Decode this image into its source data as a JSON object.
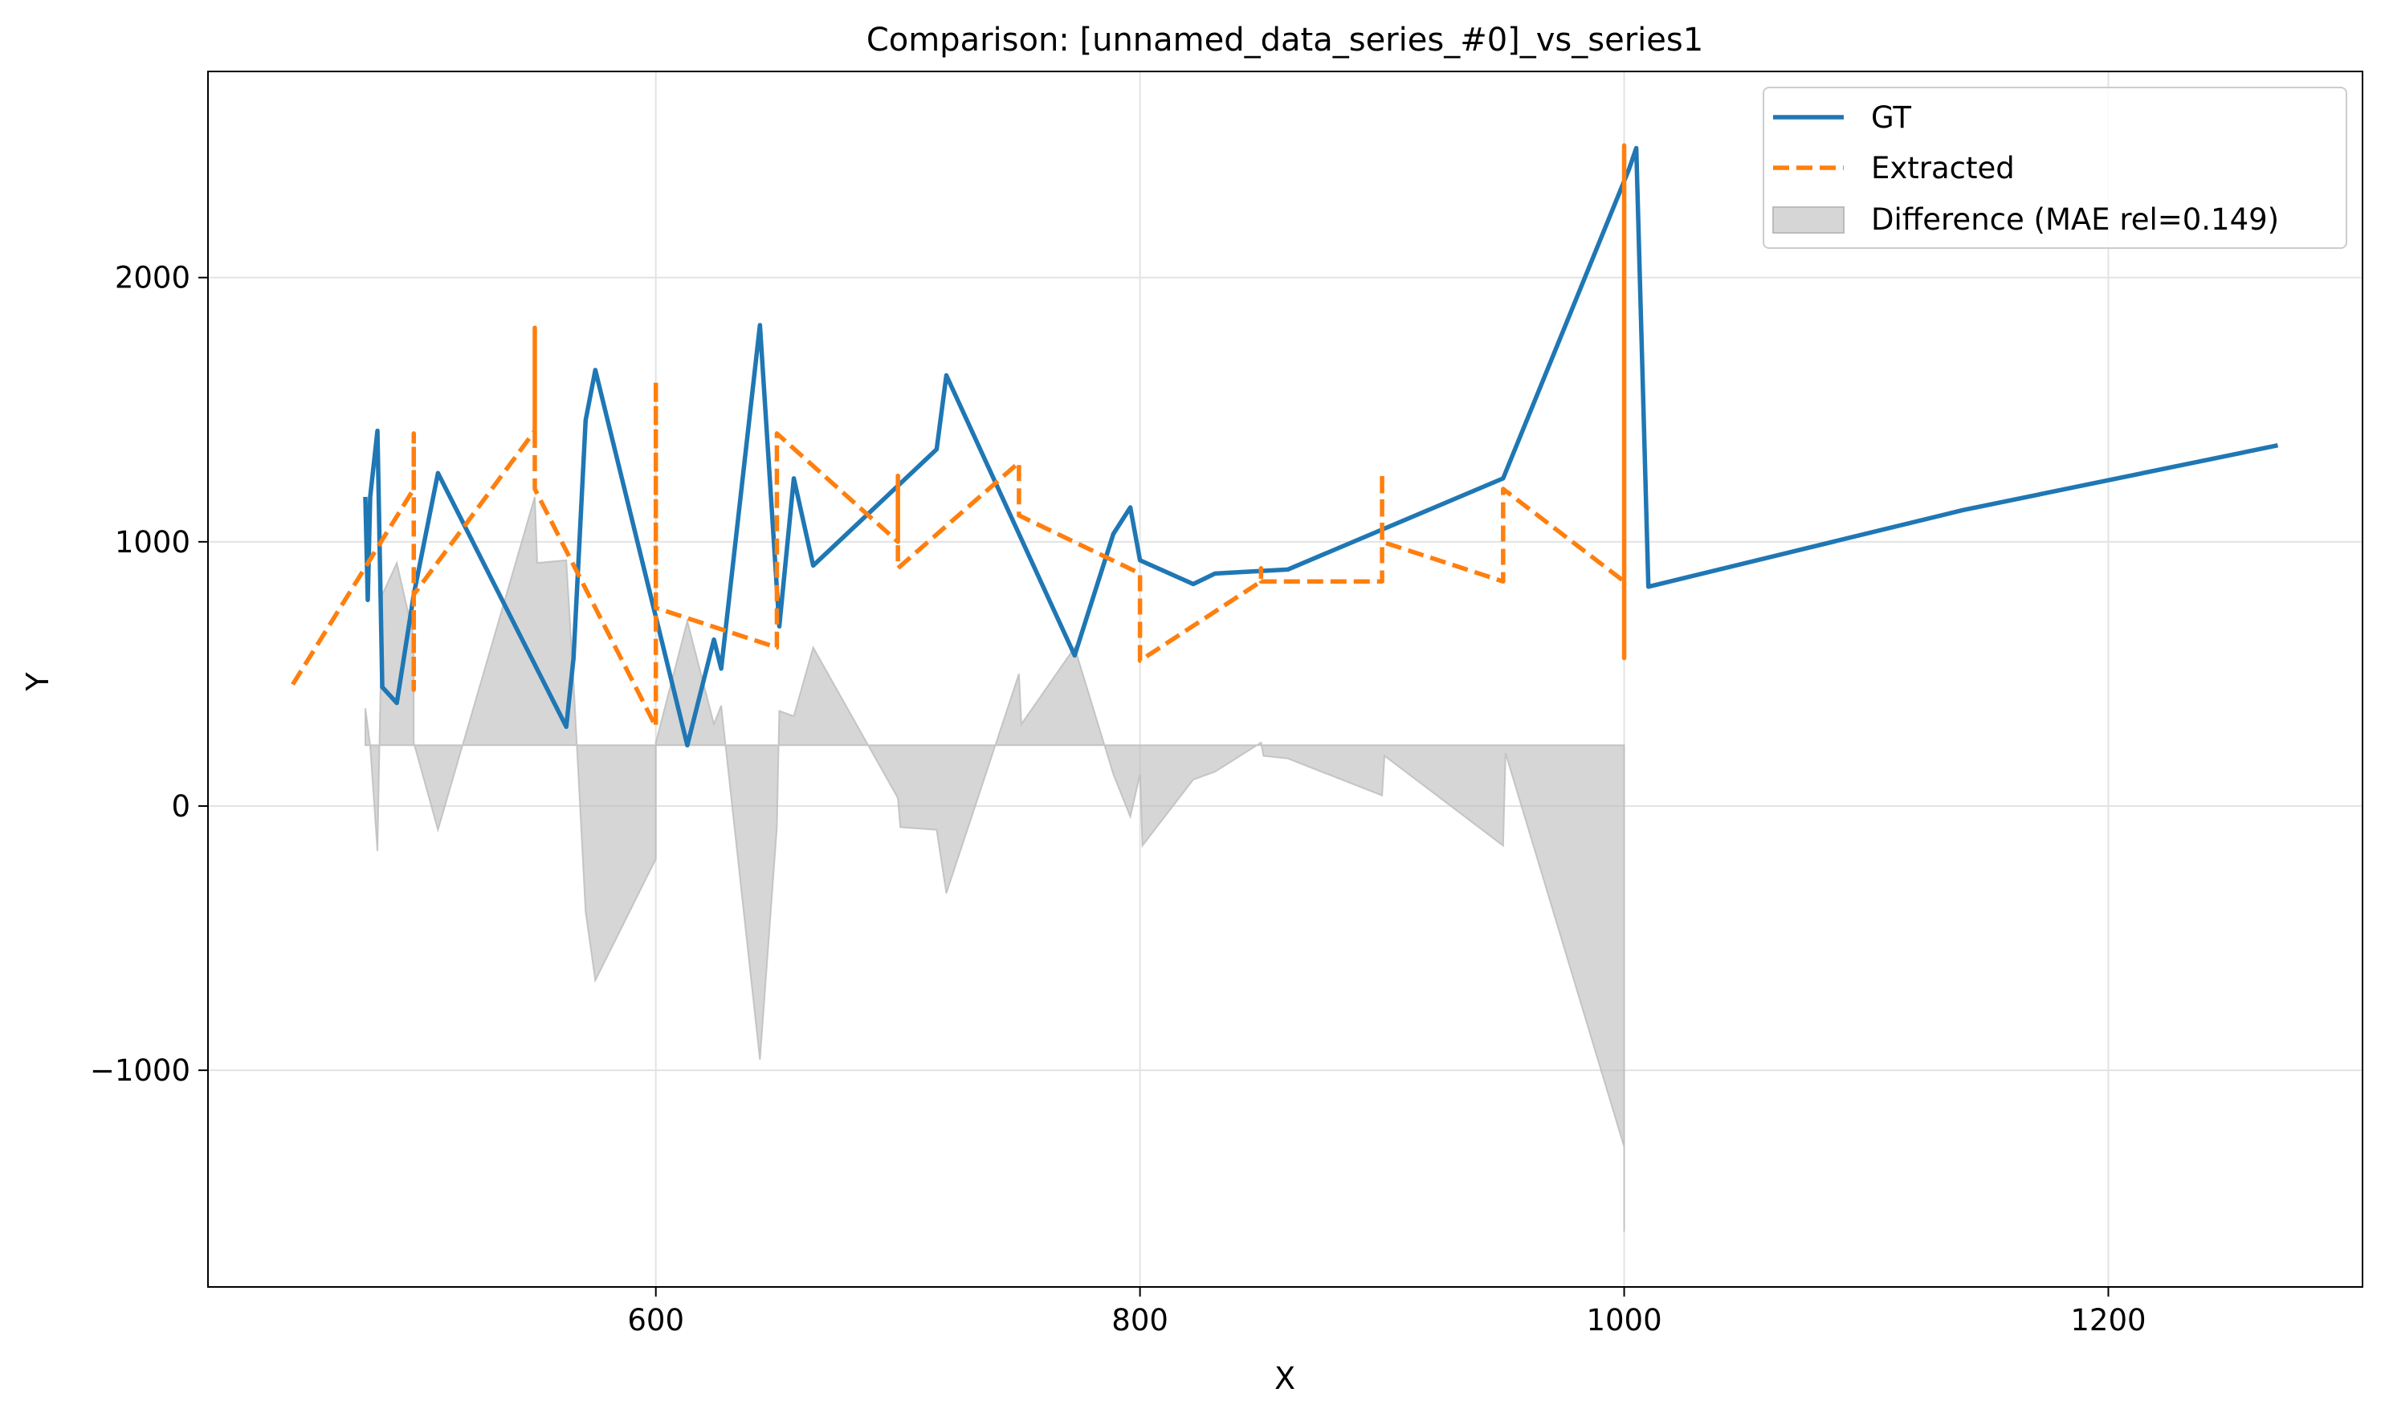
{
  "chart_data": {
    "type": "line",
    "title": "Comparison: [unnamed_data_series_#0]_vs_series1",
    "xlabel": "X",
    "ylabel": "Y",
    "xlim": [
      415,
      1305
    ],
    "ylim": [
      -1820,
      2780
    ],
    "x_ticks": [
      600,
      800,
      1000,
      1200
    ],
    "y_ticks": [
      -1000,
      0,
      1000,
      2000
    ],
    "x_tick_labels": [
      "600",
      "800",
      "1000",
      "1200"
    ],
    "y_tick_labels": [
      "−1000",
      "0",
      "1000",
      "2000"
    ],
    "grid": true,
    "legend_position": "top-right",
    "series": [
      {
        "name": "GT",
        "style": "solid",
        "color": "#1f77b4",
        "points": [
          [
            480,
            1170
          ],
          [
            481,
            780
          ],
          [
            482,
            1170
          ],
          [
            485,
            1420
          ],
          [
            487,
            450
          ],
          [
            493,
            390
          ],
          [
            500,
            800
          ],
          [
            510,
            1260
          ],
          [
            563,
            300
          ],
          [
            566,
            560
          ],
          [
            571,
            1460
          ],
          [
            575,
            1650
          ],
          [
            613,
            230
          ],
          [
            624,
            630
          ],
          [
            627,
            520
          ],
          [
            643,
            1820
          ],
          [
            651,
            680
          ],
          [
            657,
            1240
          ],
          [
            665,
            910
          ],
          [
            716,
            1350
          ],
          [
            720,
            1630
          ],
          [
            773,
            570
          ],
          [
            789,
            1030
          ],
          [
            796,
            1130
          ],
          [
            800,
            930
          ],
          [
            822,
            840
          ],
          [
            831,
            880
          ],
          [
            861,
            895
          ],
          [
            950,
            1240
          ],
          [
            1002,
            2410
          ],
          [
            1005,
            2490
          ],
          [
            1010,
            830
          ],
          [
            1140,
            1120
          ],
          [
            1270,
            1365
          ]
        ]
      },
      {
        "name": "Extracted",
        "style": "dashed",
        "color": "#ff7f0e",
        "points": [
          [
            450,
            460
          ],
          [
            500,
            1200
          ],
          [
            500,
            1410
          ],
          [
            500,
            440
          ],
          [
            500,
            800
          ],
          [
            550,
            1420
          ],
          [
            550,
            1810
          ],
          [
            550,
            1200
          ],
          [
            600,
            300
          ],
          [
            600,
            1610
          ],
          [
            600,
            750
          ],
          [
            650,
            600
          ],
          [
            650,
            1410
          ],
          [
            700,
            1000
          ],
          [
            700,
            1250
          ],
          [
            700,
            900
          ],
          [
            750,
            1300
          ],
          [
            750,
            1100
          ],
          [
            800,
            880
          ],
          [
            800,
            550
          ],
          [
            850,
            850
          ],
          [
            850,
            900
          ],
          [
            850,
            850
          ],
          [
            900,
            850
          ],
          [
            900,
            1260
          ],
          [
            900,
            1000
          ],
          [
            950,
            850
          ],
          [
            950,
            1200
          ],
          [
            1000,
            850
          ],
          [
            1000,
            2500
          ],
          [
            1000,
            560
          ],
          [
            1000,
            850
          ]
        ]
      },
      {
        "name": "Difference (MAE rel=0.149)",
        "style": "fill",
        "color": "#bbbbbb",
        "baseline": 230,
        "x_extent": [
          480,
          1000
        ],
        "points": [
          [
            480,
            370
          ],
          [
            482,
            230
          ],
          [
            485,
            -170
          ],
          [
            487,
            800
          ],
          [
            493,
            920
          ],
          [
            500,
            640
          ],
          [
            500,
            240
          ],
          [
            510,
            -90
          ],
          [
            550,
            1170
          ],
          [
            551,
            920
          ],
          [
            563,
            930
          ],
          [
            566,
            470
          ],
          [
            571,
            -400
          ],
          [
            575,
            -660
          ],
          [
            600,
            -200
          ],
          [
            600,
            240
          ],
          [
            613,
            700
          ],
          [
            624,
            310
          ],
          [
            627,
            380
          ],
          [
            643,
            -960
          ],
          [
            650,
            -80
          ],
          [
            651,
            360
          ],
          [
            657,
            340
          ],
          [
            665,
            600
          ],
          [
            700,
            30
          ],
          [
            701,
            -80
          ],
          [
            716,
            -90
          ],
          [
            720,
            -330
          ],
          [
            750,
            500
          ],
          [
            751,
            310
          ],
          [
            773,
            600
          ],
          [
            789,
            120
          ],
          [
            796,
            -40
          ],
          [
            800,
            120
          ],
          [
            801,
            -150
          ],
          [
            822,
            100
          ],
          [
            831,
            130
          ],
          [
            850,
            240
          ],
          [
            851,
            190
          ],
          [
            861,
            180
          ],
          [
            900,
            40
          ],
          [
            901,
            190
          ],
          [
            950,
            -150
          ],
          [
            951,
            200
          ],
          [
            1000,
            -1290
          ],
          [
            1000,
            -1610
          ]
        ]
      }
    ]
  }
}
